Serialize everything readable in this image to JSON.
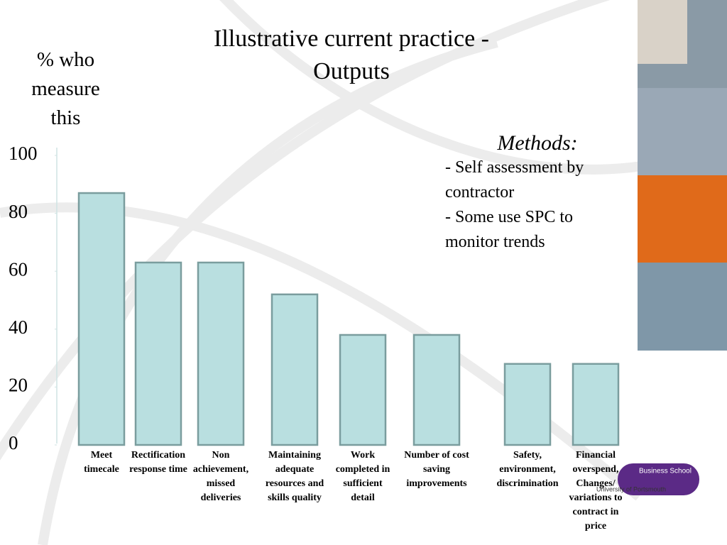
{
  "chart_data": {
    "type": "bar",
    "title": "Illustrative current practice - Outputs",
    "y_axis_label": "% who measure this",
    "categories": [
      "Meet timecale",
      "Rectification response time",
      "Non achievement, missed deliveries",
      "Maintaining adequate resources and skills quality",
      "Work completed in sufficient detail",
      "Number of cost saving improvements",
      "Safety, environment, discrimination",
      "Financial overspend, Changes/ variations to contract in price"
    ],
    "values": [
      87,
      63,
      63,
      52,
      38,
      38,
      28,
      28
    ],
    "color": "#b9dfe0",
    "ylim": [
      0,
      100
    ],
    "yticks": [
      0,
      20,
      40,
      60,
      80,
      100
    ],
    "grid": false,
    "methods": {
      "heading": "Methods:",
      "items": [
        "- Self assessment by contractor",
        "- Some use SPC to monitor trends"
      ]
    },
    "logo": {
      "school": "Business School",
      "university": "University of Portsmouth"
    }
  }
}
